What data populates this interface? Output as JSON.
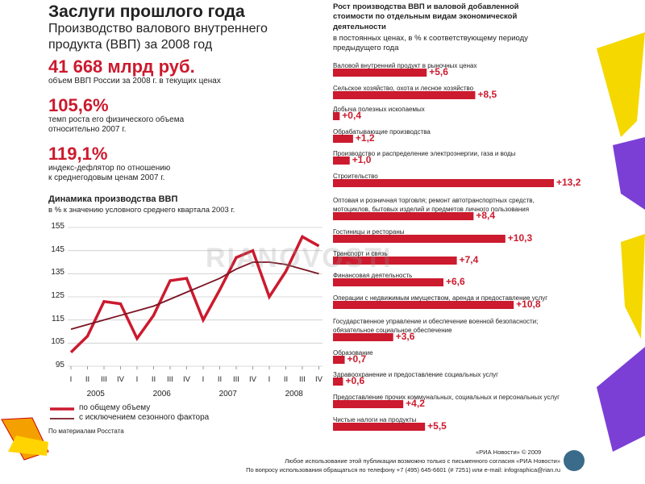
{
  "header": {
    "title": "Заслуги прошлого года",
    "subtitle": "Производство валового внутреннего\nпродукта (ВВП) за 2008 год"
  },
  "stats": [
    {
      "value": "41 668 млрд руб.",
      "text": "объем ВВП России за 2008 г. в текущих ценах"
    },
    {
      "value": "105,6%",
      "text": "темп роста его физического объема\nотносительно 2007 г."
    },
    {
      "value": "119,1%",
      "text": "индекс-дефлятор по отношению\nк среднегодовым ценам 2007 г."
    }
  ],
  "chart_data": [
    {
      "type": "line",
      "title": "Динамика производства ВВП",
      "subtitle": "в % к значению условного среднего квартала 2003 г.",
      "categories": [
        "I",
        "II",
        "III",
        "IV",
        "I",
        "II",
        "III",
        "IV",
        "I",
        "II",
        "III",
        "IV",
        "I",
        "II",
        "III",
        "IV"
      ],
      "year_labels": [
        "2005",
        "2006",
        "2007",
        "2008"
      ],
      "series": [
        {
          "name": "по общему объему",
          "color": "#cc1a2e",
          "values": [
            101,
            108,
            123,
            122,
            107,
            117,
            132,
            133,
            115,
            128,
            142,
            145,
            125,
            136,
            151,
            147
          ]
        },
        {
          "name": "с исключением сезонного фактора",
          "color": "#7a1422",
          "values": [
            111,
            113,
            115,
            117,
            119,
            121,
            124,
            127,
            130,
            133,
            137,
            140,
            140,
            139,
            137,
            135
          ]
        }
      ],
      "ylim": [
        95,
        155
      ],
      "yticks": [
        95,
        105,
        115,
        125,
        135,
        145,
        155
      ],
      "grid": true,
      "source": "По материалам Росстата"
    },
    {
      "type": "hbar",
      "title": "Рост производства ВВП и валовой добавленной\nстоимости по отдельным видам экономической\nдеятельности",
      "subtitle": "в постоянных ценах, в % к соответствующему периоду\nпредыдущего года",
      "color": "#cc1a2e",
      "categories": [
        "Валовой внутренний продукт в рыночных ценах",
        "Сельское хозяйство, охота и лесное хозяйство",
        "Добыча полезных ископаемых",
        "Обрабатывающие производства",
        "Производство и распределение электроэнергии, газа и воды",
        "Строительство",
        "Оптовая и розничная торговля; ремонт автотранспортных средств,\nмотоциклов, бытовых изделий и предметов личного пользования",
        "Гостиницы и рестораны",
        "Транспорт и связь",
        "Финансовая деятельность",
        "Операции с недвижимым имуществом, аренда и предоставление услуг",
        "Государственное управление и обеспечение военной безопасности;\nобязательное социальное обеспечение",
        "Образование",
        "Здравоохранение и предоставление социальных услуг",
        "Предоставление прочих коммунальных, социальных и персональных услуг",
        "Чистые налоги на продукты"
      ],
      "values": [
        5.6,
        8.5,
        0.4,
        1.2,
        1.0,
        13.2,
        8.4,
        10.3,
        7.4,
        6.6,
        10.8,
        3.6,
        0.7,
        0.6,
        4.2,
        5.5
      ],
      "value_labels": [
        "+5,6",
        "+8,5",
        "+0,4",
        "+1,2",
        "+1,0",
        "+13,2",
        "+8,4",
        "+10,3",
        "+7,4",
        "+6,6",
        "+10,8",
        "+3,6",
        "+0,7",
        "+0,6",
        "+4,2",
        "+5,5"
      ]
    }
  ],
  "watermark": "RIANOVOSTI",
  "footer": {
    "copyright": "«РИА Новости» © 2009",
    "line1": "Любое использование этой публикации возможно только с письменного согласия «РИА Новости»",
    "line2": "По вопросу использования обращаться по телефону +7 (495) 645-6601 (# 7251) или e-mail: infographica@rian.ru"
  }
}
